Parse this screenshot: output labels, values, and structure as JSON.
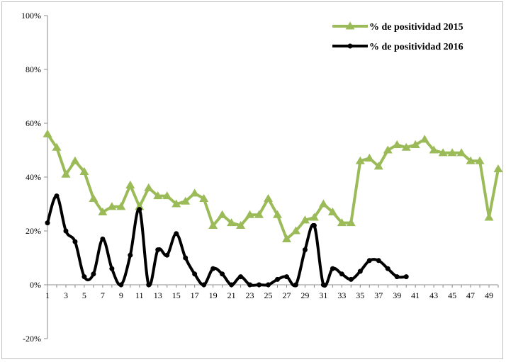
{
  "chart_data": {
    "type": "line",
    "title": "",
    "xlabel": "",
    "ylabel": "",
    "ylim": [
      -20,
      100
    ],
    "xlim": [
      1,
      50
    ],
    "y_tick_labels": [
      "100%",
      "80%",
      "60%",
      "40%",
      "20%",
      "0%",
      "-20%"
    ],
    "x_tick_labels": [
      "1",
      "3",
      "5",
      "7",
      "9",
      "11",
      "13",
      "15",
      "17",
      "19",
      "21",
      "23",
      "25",
      "27",
      "29",
      "31",
      "33",
      "35",
      "37",
      "39",
      "41",
      "43",
      "45",
      "47",
      "49"
    ],
    "legend_position": "top-right",
    "grid": false,
    "series": [
      {
        "name": "% de positividad 2015",
        "color": "#9bbb59",
        "marker": "triangle",
        "smooth": false,
        "x": [
          1,
          2,
          3,
          4,
          5,
          6,
          7,
          8,
          9,
          10,
          11,
          12,
          13,
          14,
          15,
          16,
          17,
          18,
          19,
          20,
          21,
          22,
          23,
          24,
          25,
          26,
          27,
          28,
          29,
          30,
          31,
          32,
          33,
          34,
          35,
          36,
          37,
          38,
          39,
          40,
          41,
          42,
          43,
          44,
          45,
          46,
          47,
          48,
          49,
          50
        ],
        "values": [
          56,
          51,
          41,
          46,
          42,
          32,
          27,
          29,
          29,
          37,
          29,
          36,
          33,
          33,
          30,
          31,
          34,
          32,
          22,
          26,
          23,
          22,
          26,
          26,
          32,
          26,
          17,
          20,
          24,
          25,
          30,
          27,
          23,
          23,
          46,
          47,
          44,
          50,
          52,
          51,
          52,
          54,
          50,
          49,
          49,
          49,
          46,
          46,
          25,
          43
        ]
      },
      {
        "name": "% de positividad 2016",
        "color": "#000000",
        "marker": "circle",
        "smooth": true,
        "x": [
          1,
          2,
          3,
          4,
          5,
          6,
          7,
          8,
          9,
          10,
          11,
          12,
          13,
          14,
          15,
          16,
          17,
          18,
          19,
          20,
          21,
          22,
          23,
          24,
          25,
          26,
          27,
          28,
          29,
          30,
          31,
          32,
          33,
          34,
          35,
          36,
          37,
          38,
          39,
          40
        ],
        "values": [
          23,
          33,
          20,
          16,
          3,
          4,
          17,
          6,
          0,
          11,
          28,
          0,
          13,
          11,
          19,
          10,
          4,
          0,
          6,
          4,
          0,
          3,
          0,
          0,
          0,
          2,
          3,
          0,
          13,
          22,
          0,
          6,
          4,
          2,
          5,
          9,
          9,
          6,
          3,
          3
        ]
      }
    ]
  }
}
